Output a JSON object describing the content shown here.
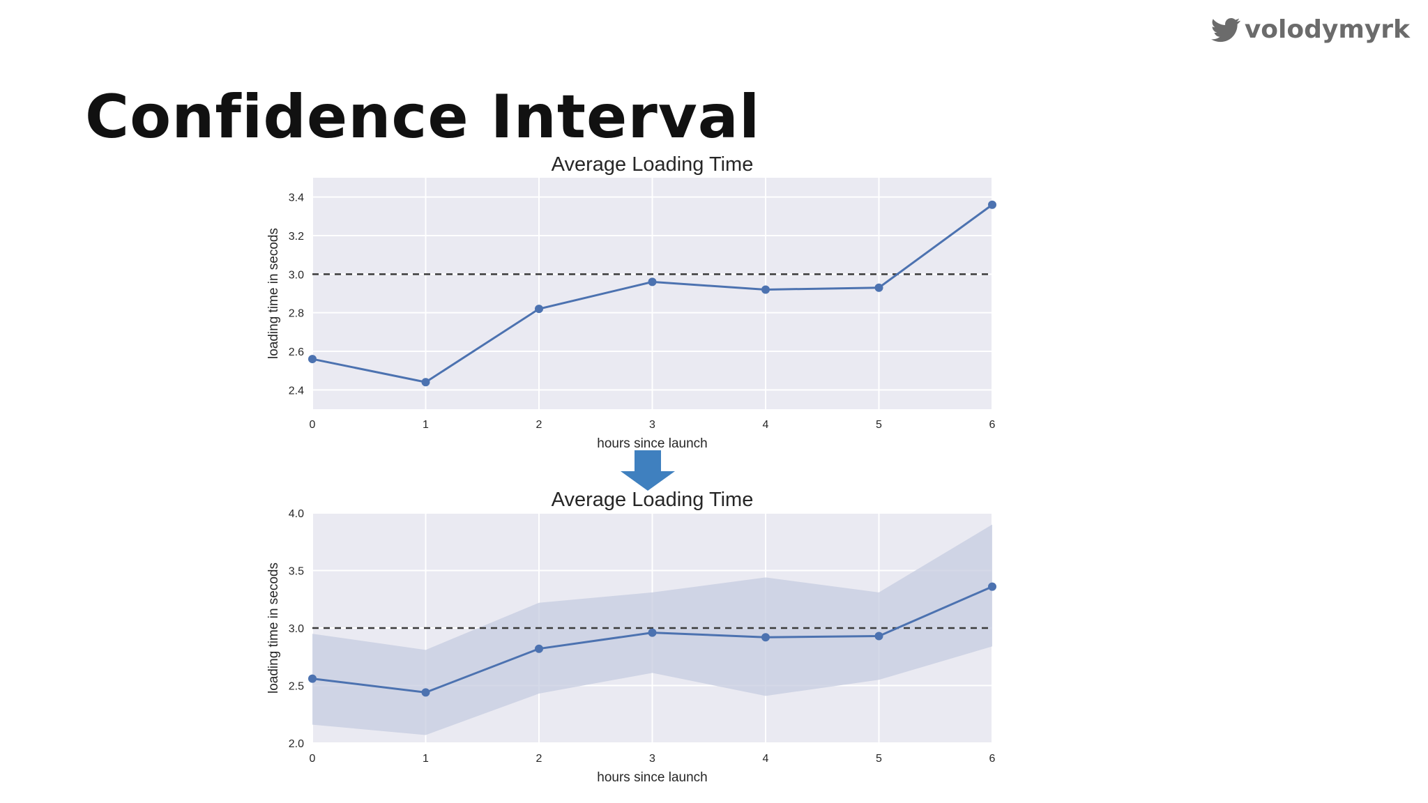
{
  "brand": {
    "handle": "volodymyrk",
    "icon": "twitter-bird-icon"
  },
  "slide": {
    "title": "Confidence Interval"
  },
  "colors": {
    "plot_bg": "#EAEAF2",
    "grid": "#FFFFFF",
    "line": "#4C72B0",
    "band": "#C5CCE0",
    "threshold": "#3A3A3A",
    "arrow": "#3F80BF"
  },
  "chart_data": [
    {
      "type": "line",
      "title": "Average Loading Time",
      "xlabel": "hours since launch",
      "ylabel": "loading time in secods",
      "x": [
        0,
        1,
        2,
        3,
        4,
        5,
        6
      ],
      "xticks": [
        "0",
        "1",
        "2",
        "3",
        "4",
        "5",
        "6"
      ],
      "yticks": [
        "2.4",
        "2.6",
        "2.8",
        "3.0",
        "3.2",
        "3.4"
      ],
      "xlim": [
        0,
        6
      ],
      "ylim": [
        2.3,
        3.5
      ],
      "series": [
        {
          "name": "loading time",
          "values": [
            2.56,
            2.44,
            2.82,
            2.96,
            2.92,
            2.93,
            3.36
          ]
        }
      ],
      "reference_line": {
        "y": 3.0,
        "style": "dashed"
      },
      "grid": true
    },
    {
      "type": "line",
      "title": "Average Loading Time",
      "xlabel": "hours since launch",
      "ylabel": "loading time in secods",
      "x": [
        0,
        1,
        2,
        3,
        4,
        5,
        6
      ],
      "xticks": [
        "0",
        "1",
        "2",
        "3",
        "4",
        "5",
        "6"
      ],
      "yticks": [
        "2.0",
        "2.5",
        "3.0",
        "3.5",
        "4.0"
      ],
      "xlim": [
        0,
        6
      ],
      "ylim": [
        2.0,
        4.0
      ],
      "series": [
        {
          "name": "loading time",
          "values": [
            2.56,
            2.44,
            2.82,
            2.96,
            2.92,
            2.93,
            3.36
          ],
          "ci_lower": [
            2.16,
            2.07,
            2.43,
            2.61,
            2.41,
            2.55,
            2.84
          ],
          "ci_upper": [
            2.95,
            2.81,
            3.22,
            3.31,
            3.44,
            3.31,
            3.9
          ]
        }
      ],
      "reference_line": {
        "y": 3.0,
        "style": "dashed"
      },
      "grid": true
    }
  ]
}
